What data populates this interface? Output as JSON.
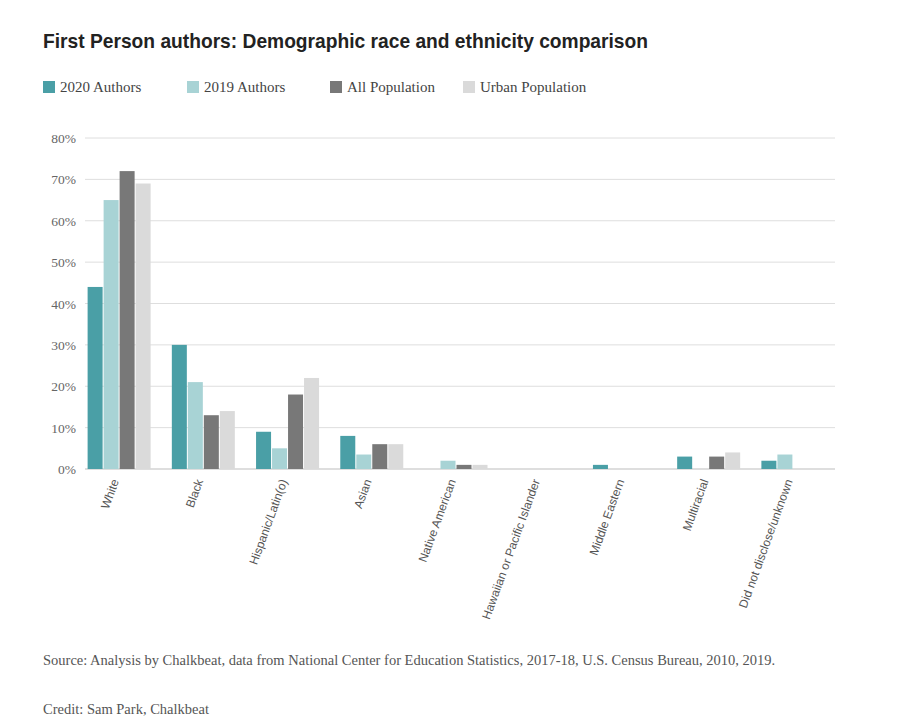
{
  "chart_data": {
    "type": "bar",
    "title": "First Person authors: Demographic race and ethnicity comparison",
    "categories": [
      "White",
      "Black",
      "Hispanic/Latin(o)",
      "Asian",
      "Native American",
      "Hawaiian or Pacific Islander",
      "Middle Eastern",
      "Multiracial",
      "Did not disclose/unknown"
    ],
    "series": [
      {
        "name": "2020 Authors",
        "color": "#4a9fa6",
        "values": [
          44,
          30,
          9,
          8,
          0,
          0,
          1,
          3,
          2
        ]
      },
      {
        "name": "2019 Authors",
        "color": "#a8d3d5",
        "values": [
          65,
          21,
          5,
          3.5,
          2,
          0,
          0,
          0,
          3.5
        ]
      },
      {
        "name": "All Population",
        "color": "#787878",
        "values": [
          72,
          13,
          18,
          6,
          1,
          0,
          0,
          3,
          0
        ]
      },
      {
        "name": "Urban Population",
        "color": "#dadada",
        "values": [
          69,
          14,
          22,
          6,
          1,
          0,
          0,
          4,
          0
        ]
      }
    ],
    "ylim": [
      0,
      80
    ],
    "yticks": [
      {
        "value": 0,
        "label": "0%"
      },
      {
        "value": 10,
        "label": "10%"
      },
      {
        "value": 20,
        "label": "20%"
      },
      {
        "value": 30,
        "label": "30%"
      },
      {
        "value": 40,
        "label": "40%"
      },
      {
        "value": 50,
        "label": "50%"
      },
      {
        "value": 60,
        "label": "60%"
      },
      {
        "value": 70,
        "label": "70%"
      },
      {
        "value": 80,
        "label": "80%"
      }
    ],
    "grid": true,
    "legend": "top",
    "source": "Source: Analysis by Chalkbeat, data from National Center for Education Statistics, 2017-18, U.S. Census Bureau, 2010, 2019.",
    "credit": "Credit: Sam Park, Chalkbeat"
  }
}
